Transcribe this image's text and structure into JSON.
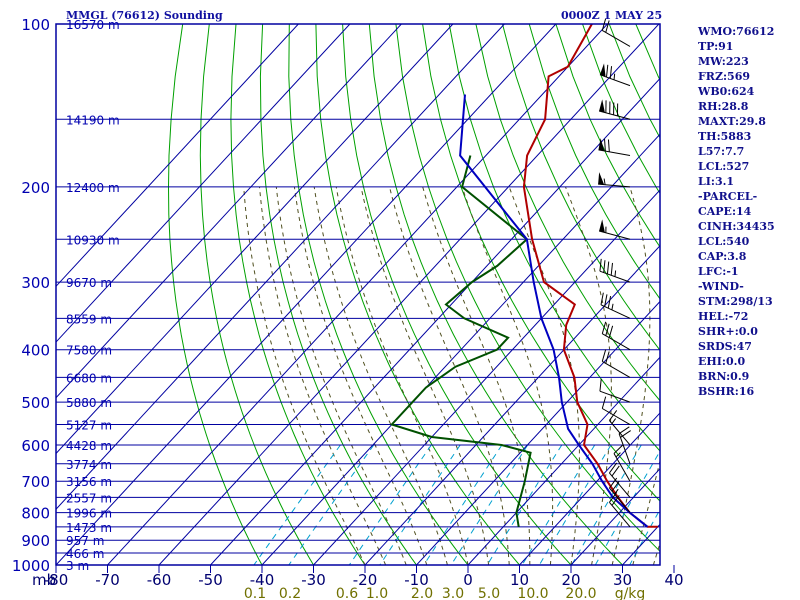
{
  "header": {
    "title": "MMGL (76612) Sounding",
    "time": "0000Z  1 MAY 25"
  },
  "indices": [
    "WMO:76612",
    "TP:91",
    "MW:223",
    "FRZ:569",
    "WB0:624",
    "RH:28.8",
    "MAXT:29.8",
    "TH:5883",
    "L57:7.7",
    "LCL:527",
    "LI:3.1",
    "-PARCEL-",
    "CAPE:14",
    "CINH:34435",
    "LCL:540",
    "CAP:3.8",
    "LFC:-1",
    "-WIND-",
    "STM:298/13",
    "HEL:-72",
    "SHR+:0.0",
    "SRDS:47",
    "EHI:0.0",
    "BRN:0.9",
    "BSHR:16"
  ],
  "colors": {
    "frame": "#0000a0",
    "grid": "#0000a0",
    "isotherm": "#0000a0",
    "dry_adiabat": "#00a000",
    "moist_adiabat": "#505020",
    "mixing_ratio": "#00a0d0",
    "temperature": "#b00000",
    "dewpoint": "#005000",
    "parcel": "#0000c0",
    "pressure_label": "#0000b0",
    "temp_label": "#000070",
    "mixing_label": "#707000",
    "wind": "#000000"
  },
  "chart_data": {
    "type": "skew-t",
    "pressure_levels_mb": [
      100,
      200,
      300,
      400,
      500,
      600,
      700,
      800,
      900,
      1000
    ],
    "pressure_tick_labels": [
      "100",
      "200",
      "300",
      "400",
      "500",
      "600",
      "700",
      "800",
      "900",
      "1000"
    ],
    "xaxis_unit_label": "mb",
    "temperature_ticks_c": [
      -80,
      -70,
      -60,
      -50,
      -40,
      -30,
      -20,
      -10,
      0,
      10,
      20,
      30,
      40
    ],
    "temperature_tick_labels": [
      "-80",
      "-70",
      "-60",
      "-50",
      "-40",
      "-30",
      "-20",
      "-10",
      "0",
      "10",
      "20",
      "30",
      "40"
    ],
    "mixing_ratio_labels": [
      "0.1",
      "0.2",
      "0.6",
      "1.0",
      "2.0",
      "3.0",
      "5.0",
      "10.0",
      "20.0",
      "g/kg"
    ],
    "height_labels": [
      {
        "p": 100,
        "label": "16570 m"
      },
      {
        "p": 150,
        "label": "14190 m"
      },
      {
        "p": 200,
        "label": "12400 m"
      },
      {
        "p": 250,
        "label": "10930 m"
      },
      {
        "p": 300,
        "label": "9670 m"
      },
      {
        "p": 350,
        "label": "8559 m"
      },
      {
        "p": 400,
        "label": "7580 m"
      },
      {
        "p": 450,
        "label": "6680 m"
      },
      {
        "p": 500,
        "label": "5880 m"
      },
      {
        "p": 550,
        "label": "5127 m"
      },
      {
        "p": 600,
        "label": "4428 m"
      },
      {
        "p": 650,
        "label": "3774 m"
      },
      {
        "p": 700,
        "label": "3156 m"
      },
      {
        "p": 750,
        "label": "2557 m"
      },
      {
        "p": 800,
        "label": "1996 m"
      },
      {
        "p": 850,
        "label": "1473 m"
      },
      {
        "p": 900,
        "label": "957 m"
      },
      {
        "p": 950,
        "label": "466 m"
      },
      {
        "p": 1000,
        "label": "3 m"
      }
    ],
    "series": [
      {
        "name": "temperature",
        "points": [
          [
            100,
            -73
          ],
          [
            120,
            -70
          ],
          [
            125,
            -72
          ],
          [
            150,
            -65
          ],
          [
            175,
            -62
          ],
          [
            200,
            -57
          ],
          [
            250,
            -46
          ],
          [
            300,
            -36
          ],
          [
            330,
            -26
          ],
          [
            360,
            -24
          ],
          [
            400,
            -20
          ],
          [
            450,
            -13
          ],
          [
            500,
            -8
          ],
          [
            550,
            -2
          ],
          [
            600,
            1
          ],
          [
            650,
            7
          ],
          [
            700,
            12
          ],
          [
            750,
            17
          ],
          [
            800,
            22
          ],
          [
            850,
            28
          ],
          [
            850,
            30
          ]
        ]
      },
      {
        "name": "dewpoint",
        "points": [
          [
            175,
            -73
          ],
          [
            200,
            -69
          ],
          [
            250,
            -47
          ],
          [
            280,
            -48
          ],
          [
            300,
            -50
          ],
          [
            330,
            -51
          ],
          [
            350,
            -45
          ],
          [
            380,
            -33
          ],
          [
            400,
            -33
          ],
          [
            430,
            -38
          ],
          [
            470,
            -40
          ],
          [
            500,
            -40
          ],
          [
            550,
            -40
          ],
          [
            580,
            -30
          ],
          [
            600,
            -15
          ],
          [
            620,
            -8
          ],
          [
            700,
            -4
          ],
          [
            800,
            0
          ],
          [
            850,
            3
          ]
        ]
      },
      {
        "name": "parcel",
        "points": [
          [
            135,
            -85
          ],
          [
            175,
            -75
          ],
          [
            250,
            -47
          ],
          [
            300,
            -38
          ],
          [
            350,
            -30
          ],
          [
            400,
            -22
          ],
          [
            450,
            -16
          ],
          [
            500,
            -11
          ],
          [
            560,
            -5
          ],
          [
            600,
            0
          ],
          [
            650,
            6
          ],
          [
            700,
            11
          ],
          [
            750,
            16
          ],
          [
            800,
            22
          ],
          [
            850,
            28
          ]
        ]
      }
    ],
    "wind_barbs": [
      {
        "p": 110,
        "dir": 300,
        "spd_kt": 20
      },
      {
        "p": 130,
        "dir": 290,
        "spd_kt": 75
      },
      {
        "p": 150,
        "dir": 285,
        "spd_kt": 90
      },
      {
        "p": 175,
        "dir": 280,
        "spd_kt": 70
      },
      {
        "p": 200,
        "dir": 275,
        "spd_kt": 55
      },
      {
        "p": 250,
        "dir": 285,
        "spd_kt": 55
      },
      {
        "p": 300,
        "dir": 290,
        "spd_kt": 45
      },
      {
        "p": 350,
        "dir": 295,
        "spd_kt": 35
      },
      {
        "p": 400,
        "dir": 300,
        "spd_kt": 30
      },
      {
        "p": 450,
        "dir": 300,
        "spd_kt": 20
      },
      {
        "p": 500,
        "dir": 290,
        "spd_kt": 10
      },
      {
        "p": 550,
        "dir": 300,
        "spd_kt": 10
      },
      {
        "p": 600,
        "dir": 320,
        "spd_kt": 15
      },
      {
        "p": 650,
        "dir": 340,
        "spd_kt": 20
      },
      {
        "p": 700,
        "dir": 330,
        "spd_kt": 15
      },
      {
        "p": 750,
        "dir": 320,
        "spd_kt": 20
      },
      {
        "p": 800,
        "dir": 320,
        "spd_kt": 25
      },
      {
        "p": 850,
        "dir": 320,
        "spd_kt": 20
      }
    ]
  }
}
